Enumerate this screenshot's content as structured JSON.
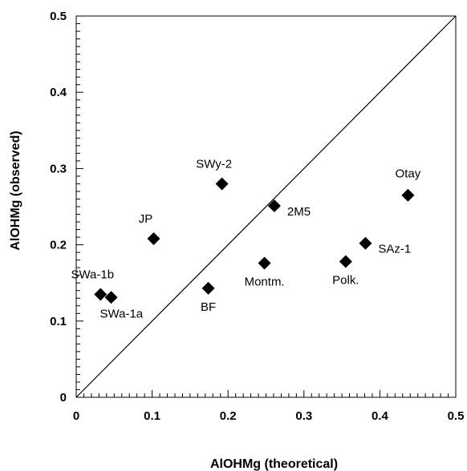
{
  "chart_data": {
    "type": "scatter",
    "xlabel": "AlOHMg  (theoretical)",
    "ylabel": "AlOHMg  (observed)",
    "xlim": [
      0,
      0.5
    ],
    "ylim": [
      0,
      0.5
    ],
    "x_ticks": [
      "0",
      "0.1",
      "0.2",
      "0.3",
      "0.4",
      "0.5"
    ],
    "y_ticks": [
      "0",
      "0.1",
      "0.2",
      "0.3",
      "0.4",
      "0.5"
    ],
    "grid": false,
    "reference_line": "y = x",
    "marker": "diamond",
    "marker_color": "#000000",
    "points": [
      {
        "label": "SWa-1b",
        "x": 0.032,
        "y": 0.135,
        "label_pos": "above-left"
      },
      {
        "label": "SWa-1a",
        "x": 0.046,
        "y": 0.131,
        "label_pos": "below-right"
      },
      {
        "label": "JP",
        "x": 0.102,
        "y": 0.208,
        "label_pos": "above-left"
      },
      {
        "label": "BF",
        "x": 0.174,
        "y": 0.143,
        "label_pos": "below"
      },
      {
        "label": "SWy-2",
        "x": 0.192,
        "y": 0.28,
        "label_pos": "above-left"
      },
      {
        "label": "Montm.",
        "x": 0.248,
        "y": 0.176,
        "label_pos": "below"
      },
      {
        "label": "2M5",
        "x": 0.261,
        "y": 0.251,
        "label_pos": "right"
      },
      {
        "label": "Polk.",
        "x": 0.355,
        "y": 0.178,
        "label_pos": "below"
      },
      {
        "label": "SAz-1",
        "x": 0.381,
        "y": 0.202,
        "label_pos": "right"
      },
      {
        "label": "Otay",
        "x": 0.437,
        "y": 0.265,
        "label_pos": "above"
      }
    ]
  }
}
